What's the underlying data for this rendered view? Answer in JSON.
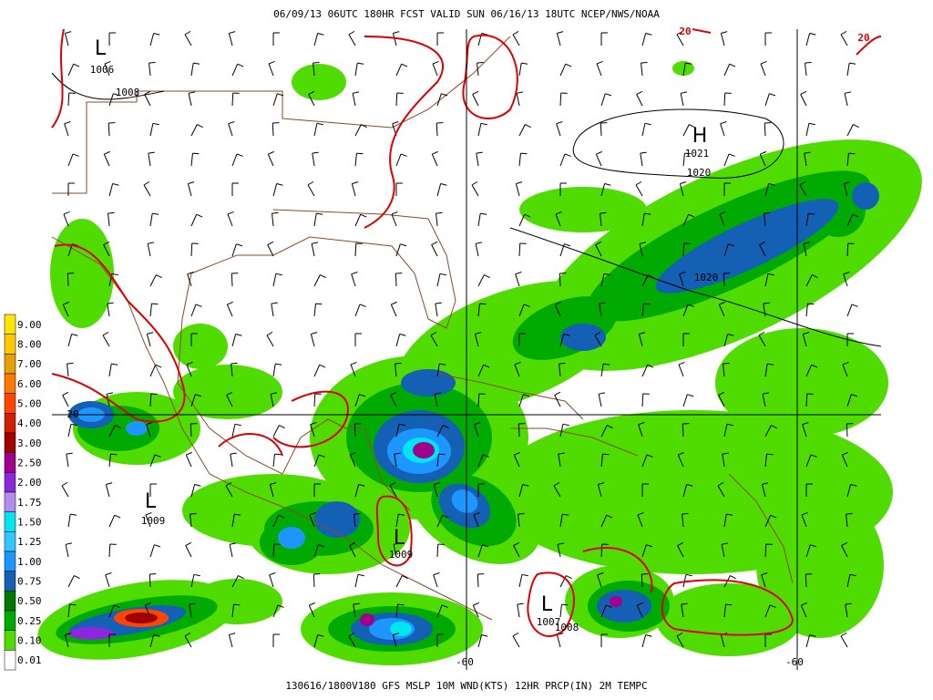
{
  "header": {
    "title": "06/09/13 06UTC  180HR  FCST VALID SUN 06/16/13 18UTC  NCEP/NWS/NOAA"
  },
  "footer": {
    "caption": "130616/1800V180 GFS MSLP 10M WND(KTS) 12HR PRCP(IN) 2M TEMPC"
  },
  "legend": {
    "items": [
      {
        "label": "9.00",
        "color": "#ffe600"
      },
      {
        "label": "8.00",
        "color": "#ffc800"
      },
      {
        "label": "7.00",
        "color": "#e6a000"
      },
      {
        "label": "6.00",
        "color": "#ff7800"
      },
      {
        "label": "5.00",
        "color": "#ff4600"
      },
      {
        "label": "4.00",
        "color": "#d21e00"
      },
      {
        "label": "3.00",
        "color": "#a00000"
      },
      {
        "label": "2.50",
        "color": "#a0008c"
      },
      {
        "label": "2.00",
        "color": "#8c28dc"
      },
      {
        "label": "1.75",
        "color": "#b48cf0"
      },
      {
        "label": "1.50",
        "color": "#00e6f0"
      },
      {
        "label": "1.25",
        "color": "#32c8ff"
      },
      {
        "label": "1.00",
        "color": "#1e96ff"
      },
      {
        "label": "0.75",
        "color": "#1460b4"
      },
      {
        "label": "0.50",
        "color": "#007800"
      },
      {
        "label": "0.25",
        "color": "#00aa00"
      },
      {
        "label": "0.10",
        "color": "#50dc00"
      },
      {
        "label": "0.01",
        "color": "#ffffff"
      }
    ]
  },
  "map": {
    "labels": [
      "L",
      "1006",
      "1008",
      "H",
      "1021",
      "1020",
      "1020",
      "20",
      "20",
      "20",
      "L",
      "1009",
      "L",
      "1009",
      "L",
      "1007",
      "1008",
      "-60",
      "-60"
    ]
  }
}
